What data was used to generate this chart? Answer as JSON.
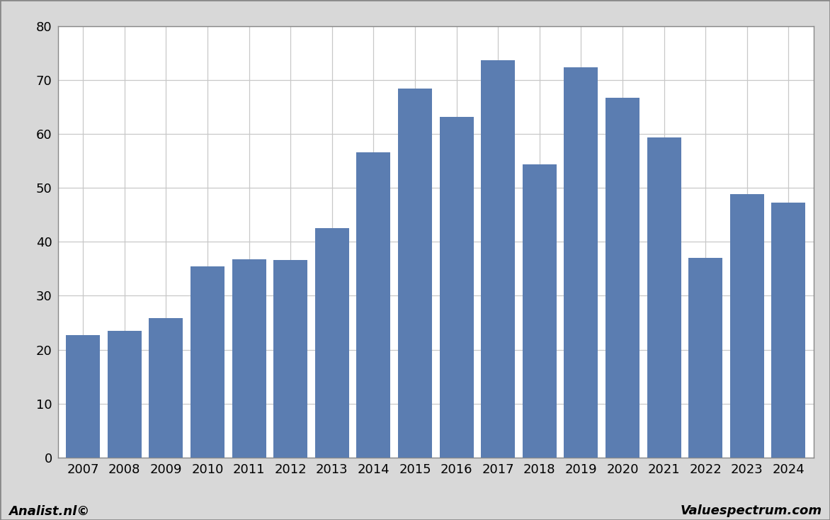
{
  "categories": [
    2007,
    2008,
    2009,
    2010,
    2011,
    2012,
    2013,
    2014,
    2015,
    2016,
    2017,
    2018,
    2019,
    2020,
    2021,
    2022,
    2023,
    2024
  ],
  "values": [
    22.7,
    23.5,
    25.9,
    35.5,
    36.7,
    36.6,
    42.6,
    56.6,
    68.4,
    63.1,
    73.7,
    54.3,
    72.3,
    66.7,
    59.3,
    37.0,
    48.8,
    47.2
  ],
  "bar_color": "#5b7db1",
  "background_color": "#d8d8d8",
  "plot_background_color": "#ffffff",
  "ylim": [
    0,
    80
  ],
  "yticks": [
    0,
    10,
    20,
    30,
    40,
    50,
    60,
    70,
    80
  ],
  "footer_left": "Analist.nl©",
  "footer_right": "Valuespectrum.com",
  "grid_color": "#c8c8c8",
  "border_color": "#888888"
}
